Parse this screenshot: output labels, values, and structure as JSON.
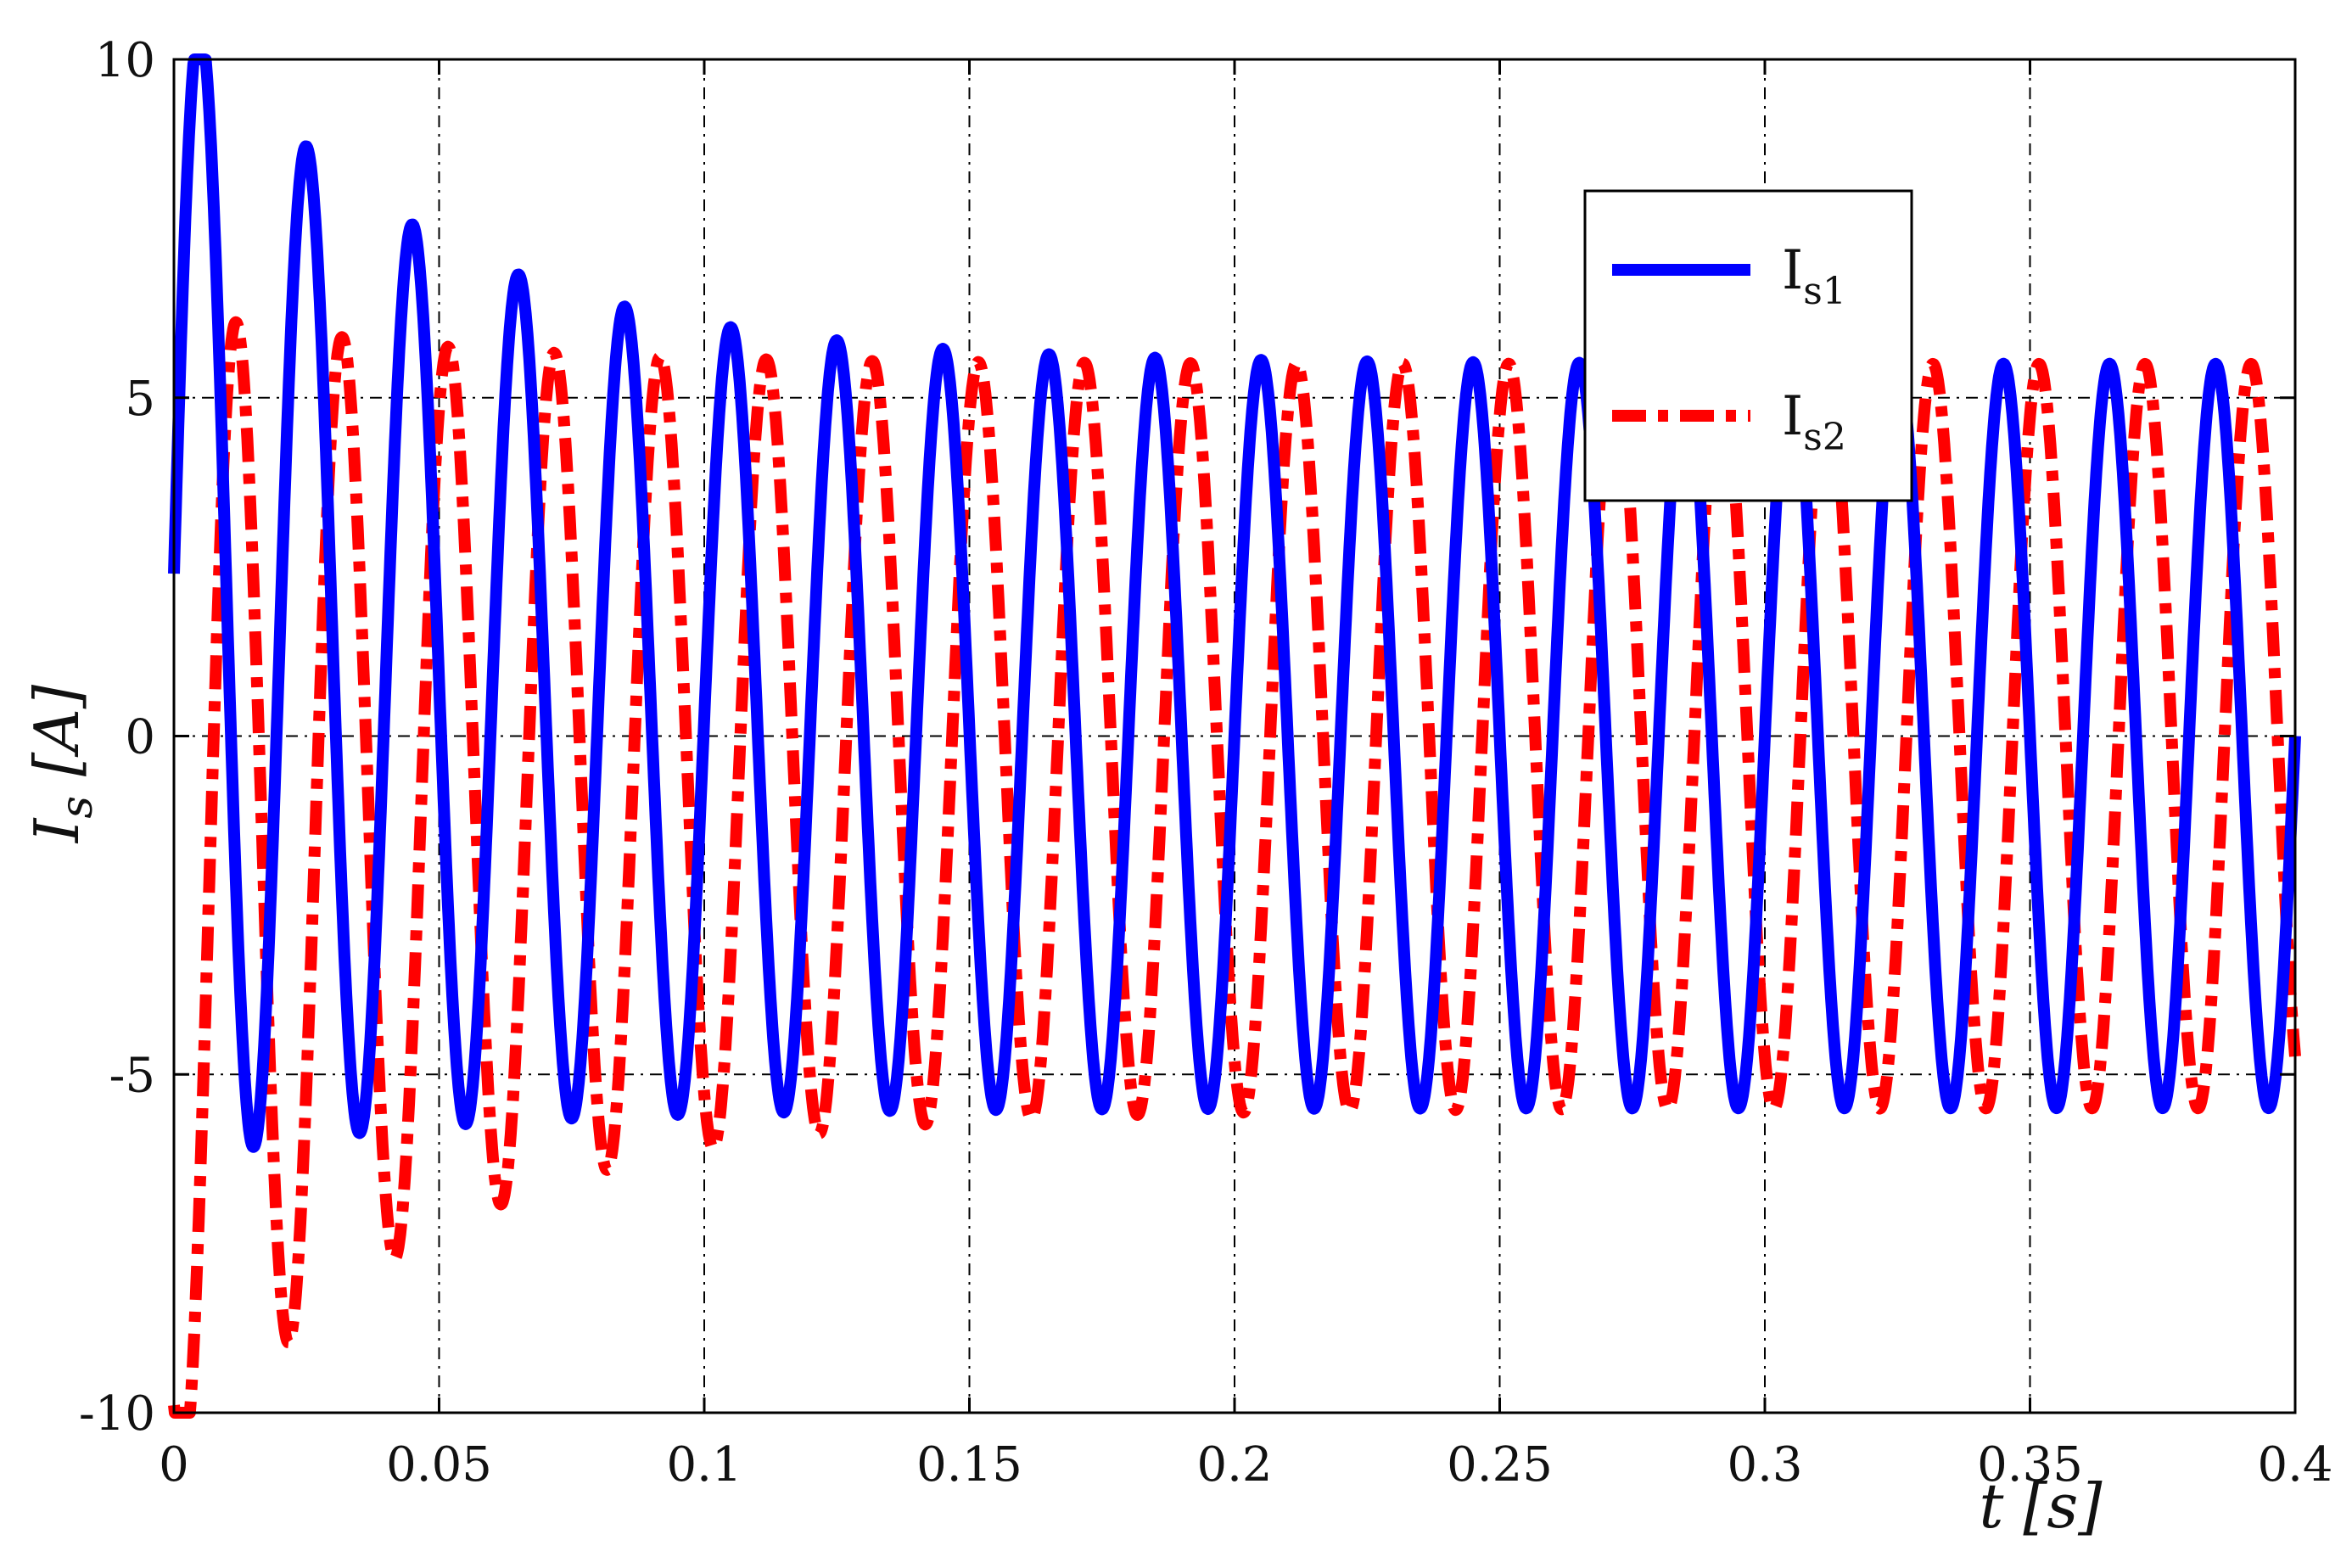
{
  "chart_data": {
    "type": "line",
    "xlabel": "t [s]",
    "ylabel": "I_s [A]",
    "xlim": [
      0,
      0.4
    ],
    "ylim": [
      -10,
      10
    ],
    "x_ticks": [
      0,
      0.05,
      0.1,
      0.15,
      0.2,
      0.25,
      0.3,
      0.35,
      0.4
    ],
    "x_tick_labels": [
      "0",
      "0.05",
      "0.1",
      "0.15",
      "0.2",
      "0.25",
      "0.3",
      "0.35",
      "0.4"
    ],
    "y_ticks": [
      -10,
      -5,
      0,
      5,
      10
    ],
    "y_tick_labels": [
      "-10",
      "-5",
      "0",
      "5",
      "10"
    ],
    "grid": true,
    "legend_position": "top-right",
    "series": [
      {
        "name": "I_s1",
        "legend_label": "I",
        "legend_subscript": "s1",
        "color": "#0000ff",
        "style": "solid",
        "waveform": {
          "frequency_hz": 50,
          "steady_amplitude": 5.5,
          "initial_peak": 10.5,
          "first_peak_time": 0.0065,
          "first_trough": -7.2
        }
      },
      {
        "name": "I_s2",
        "legend_label": "I",
        "legend_subscript": "s2",
        "color": "#ff0000",
        "style": "dash-dot",
        "waveform": {
          "frequency_hz": 50,
          "steady_amplitude": 5.5,
          "initial_peak": 8.0,
          "first_trough": -9.7,
          "first_trough_time": 0.0095,
          "time_shift_from_s1": 0.0067
        }
      }
    ]
  }
}
